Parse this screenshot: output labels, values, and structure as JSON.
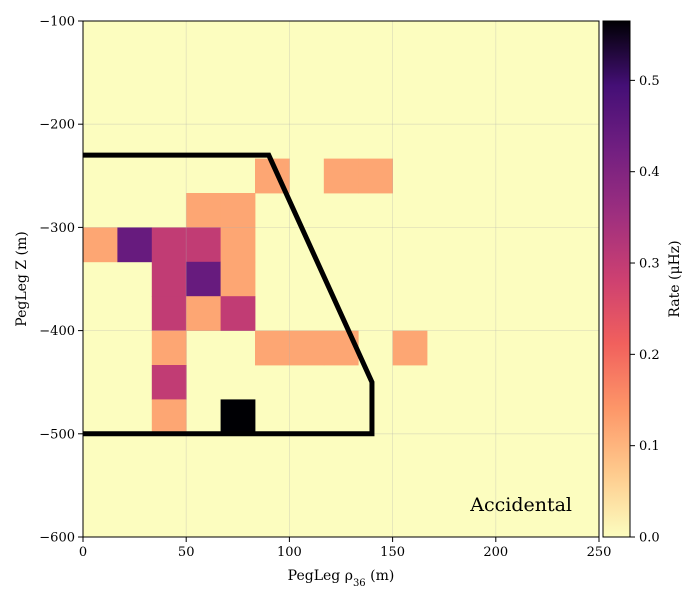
{
  "chart_data": {
    "type": "heatmap",
    "title": "",
    "xlabel": "PegLeg ρ",
    "xlabel_sub": "36",
    "xlabel_unit": " (m)",
    "ylabel": "PegLeg Z (m)",
    "colorbar_label": "Rate (μHz)",
    "annotation": "Accidental",
    "xlim": [
      0,
      250
    ],
    "ylim": [
      -600,
      -100
    ],
    "x_ticks": [
      0,
      50,
      100,
      150,
      200,
      250
    ],
    "y_ticks": [
      -600,
      -500,
      -400,
      -300,
      -200,
      -100
    ],
    "x_tick_labels": [
      "0",
      "50",
      "100",
      "150",
      "200",
      "250"
    ],
    "y_tick_labels": [
      "−600",
      "−500",
      "−400",
      "−300",
      "−200",
      "−100"
    ],
    "color_scale": {
      "min": 0.0,
      "max": 0.565,
      "colormap": "magma_r"
    },
    "colorbar_ticks": [
      0.0,
      0.1,
      0.2,
      0.3,
      0.4,
      0.5
    ],
    "colorbar_tick_labels": [
      "0.0",
      "0.1",
      "0.2",
      "0.3",
      "0.4",
      "0.5"
    ],
    "grid": true,
    "bin_size": {
      "x": 16.667,
      "y": 33.333
    },
    "background_value": 0.0,
    "cells": [
      {
        "x": [
          83.333,
          100.0
        ],
        "y": [
          -266.667,
          -233.333
        ],
        "value": 0.12
      },
      {
        "x": [
          116.667,
          133.333
        ],
        "y": [
          -266.667,
          -233.333
        ],
        "value": 0.12
      },
      {
        "x": [
          133.333,
          150.0
        ],
        "y": [
          -266.667,
          -233.333
        ],
        "value": 0.12
      },
      {
        "x": [
          50.0,
          66.667
        ],
        "y": [
          -300.0,
          -266.667
        ],
        "value": 0.12
      },
      {
        "x": [
          66.667,
          83.333
        ],
        "y": [
          -300.0,
          -266.667
        ],
        "value": 0.12
      },
      {
        "x": [
          0.0,
          16.667
        ],
        "y": [
          -333.333,
          -300.0
        ],
        "value": 0.12
      },
      {
        "x": [
          16.667,
          33.333
        ],
        "y": [
          -333.333,
          -300.0
        ],
        "value": 0.44
      },
      {
        "x": [
          33.333,
          50.0
        ],
        "y": [
          -333.333,
          -300.0
        ],
        "value": 0.3
      },
      {
        "x": [
          50.0,
          66.667
        ],
        "y": [
          -333.333,
          -300.0
        ],
        "value": 0.3
      },
      {
        "x": [
          66.667,
          83.333
        ],
        "y": [
          -333.333,
          -300.0
        ],
        "value": 0.12
      },
      {
        "x": [
          33.333,
          50.0
        ],
        "y": [
          -366.667,
          -333.333
        ],
        "value": 0.3
      },
      {
        "x": [
          50.0,
          66.667
        ],
        "y": [
          -366.667,
          -333.333
        ],
        "value": 0.44
      },
      {
        "x": [
          66.667,
          83.333
        ],
        "y": [
          -366.667,
          -333.333
        ],
        "value": 0.12
      },
      {
        "x": [
          33.333,
          50.0
        ],
        "y": [
          -400.0,
          -366.667
        ],
        "value": 0.3
      },
      {
        "x": [
          50.0,
          66.667
        ],
        "y": [
          -400.0,
          -366.667
        ],
        "value": 0.12
      },
      {
        "x": [
          66.667,
          83.333
        ],
        "y": [
          -400.0,
          -366.667
        ],
        "value": 0.3
      },
      {
        "x": [
          33.333,
          50.0
        ],
        "y": [
          -433.333,
          -400.0
        ],
        "value": 0.12
      },
      {
        "x": [
          83.333,
          100.0
        ],
        "y": [
          -433.333,
          -400.0
        ],
        "value": 0.12
      },
      {
        "x": [
          100.0,
          116.667
        ],
        "y": [
          -433.333,
          -400.0
        ],
        "value": 0.12
      },
      {
        "x": [
          116.667,
          133.333
        ],
        "y": [
          -433.333,
          -400.0
        ],
        "value": 0.12
      },
      {
        "x": [
          150.0,
          166.667
        ],
        "y": [
          -433.333,
          -400.0
        ],
        "value": 0.12
      },
      {
        "x": [
          33.333,
          50.0
        ],
        "y": [
          -466.667,
          -433.333
        ],
        "value": 0.3
      },
      {
        "x": [
          33.333,
          50.0
        ],
        "y": [
          -500.0,
          -466.667
        ],
        "value": 0.12
      },
      {
        "x": [
          66.667,
          83.333
        ],
        "y": [
          -500.0,
          -466.667
        ],
        "value": 0.565
      }
    ],
    "outline": {
      "color": "#000000",
      "points": [
        [
          0,
          -230
        ],
        [
          90,
          -230
        ],
        [
          140,
          -450
        ],
        [
          140,
          -500
        ],
        [
          0,
          -500
        ]
      ]
    }
  }
}
